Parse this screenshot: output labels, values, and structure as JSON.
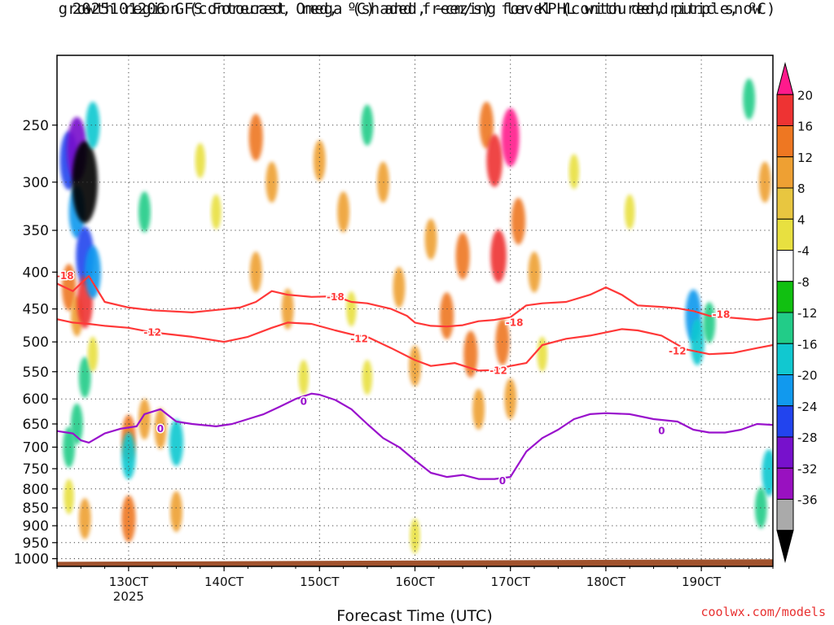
{
  "chart_data": {
    "type": "heatmap",
    "title_line1": "2025101206 GFS Forecast Omega (shaded, −cm/s) for KPHL with dendritic snow",
    "title_line2": "growth region (contoured, red, ºC) and freezing level (contoured, purple, ºC)",
    "xlabel": "Forecast Time (UTC)",
    "ylabel": "",
    "y_scale": "log-pressure",
    "ylim": [
      1025,
      200
    ],
    "y_ticks": [
      250,
      300,
      350,
      400,
      450,
      500,
      550,
      600,
      650,
      700,
      750,
      800,
      850,
      900,
      950,
      1000
    ],
    "x_ticks": [
      {
        "hour": 24,
        "label": "130CT",
        "sublabel": "2025"
      },
      {
        "hour": 48,
        "label": "140CT",
        "sublabel": ""
      },
      {
        "hour": 72,
        "label": "150CT",
        "sublabel": ""
      },
      {
        "hour": 96,
        "label": "160CT",
        "sublabel": ""
      },
      {
        "hour": 120,
        "label": "170CT",
        "sublabel": ""
      },
      {
        "hour": 144,
        "label": "180CT",
        "sublabel": ""
      },
      {
        "hour": 168,
        "label": "190CT",
        "sublabel": ""
      }
    ],
    "xlim": [
      6,
      186
    ],
    "colorbar": {
      "levels": [
        -36,
        -32,
        -28,
        -24,
        -20,
        -16,
        -12,
        -8,
        -4,
        4,
        8,
        12,
        16,
        20
      ],
      "labels": [
        "20",
        "16",
        "12",
        "8",
        "4",
        "-4",
        "-8",
        "-12",
        "-16",
        "-20",
        "-24",
        "-28",
        "-32",
        "-36"
      ],
      "colors_top_to_bottom": [
        "#ff1a8c",
        "#ee3333",
        "#ee7722",
        "#eea033",
        "#e8c640",
        "#e8e040",
        "#ffffff",
        "#11c011",
        "#22cc88",
        "#11c8d0",
        "#1199ee",
        "#2244ee",
        "#7711cc",
        "#9911c0",
        "#aaaaaa",
        "#000000"
      ]
    },
    "omega_cells": [
      {
        "t": 9,
        "p": 280,
        "v": -20
      },
      {
        "t": 9,
        "p": 420,
        "v": 12
      },
      {
        "t": 9,
        "p": 700,
        "v": -8
      },
      {
        "t": 9,
        "p": 820,
        "v": 4
      },
      {
        "t": 11,
        "p": 270,
        "v": -24
      },
      {
        "t": 11,
        "p": 330,
        "v": -16
      },
      {
        "t": 11,
        "p": 460,
        "v": 8
      },
      {
        "t": 11,
        "p": 650,
        "v": -8
      },
      {
        "t": 13,
        "p": 300,
        "v": -36
      },
      {
        "t": 13,
        "p": 380,
        "v": -20
      },
      {
        "t": 13,
        "p": 440,
        "v": 16
      },
      {
        "t": 13,
        "p": 560,
        "v": -8
      },
      {
        "t": 13,
        "p": 880,
        "v": 8
      },
      {
        "t": 15,
        "p": 250,
        "v": -12
      },
      {
        "t": 15,
        "p": 400,
        "v": -16
      },
      {
        "t": 15,
        "p": 520,
        "v": 4
      },
      {
        "t": 24,
        "p": 680,
        "v": 12
      },
      {
        "t": 24,
        "p": 720,
        "v": -12
      },
      {
        "t": 24,
        "p": 880,
        "v": 12
      },
      {
        "t": 28,
        "p": 640,
        "v": 8
      },
      {
        "t": 28,
        "p": 330,
        "v": -8
      },
      {
        "t": 32,
        "p": 660,
        "v": 8
      },
      {
        "t": 36,
        "p": 690,
        "v": -12
      },
      {
        "t": 36,
        "p": 860,
        "v": 8
      },
      {
        "t": 42,
        "p": 280,
        "v": 4
      },
      {
        "t": 46,
        "p": 330,
        "v": 4
      },
      {
        "t": 56,
        "p": 260,
        "v": 12
      },
      {
        "t": 56,
        "p": 400,
        "v": 8
      },
      {
        "t": 60,
        "p": 300,
        "v": 8
      },
      {
        "t": 64,
        "p": 450,
        "v": 8
      },
      {
        "t": 68,
        "p": 560,
        "v": 4
      },
      {
        "t": 72,
        "p": 280,
        "v": 8
      },
      {
        "t": 78,
        "p": 330,
        "v": 8
      },
      {
        "t": 80,
        "p": 450,
        "v": 4
      },
      {
        "t": 84,
        "p": 250,
        "v": -8
      },
      {
        "t": 84,
        "p": 560,
        "v": 4
      },
      {
        "t": 88,
        "p": 300,
        "v": 8
      },
      {
        "t": 92,
        "p": 420,
        "v": 8
      },
      {
        "t": 96,
        "p": 540,
        "v": 8
      },
      {
        "t": 96,
        "p": 930,
        "v": 4
      },
      {
        "t": 100,
        "p": 360,
        "v": 8
      },
      {
        "t": 104,
        "p": 460,
        "v": 12
      },
      {
        "t": 108,
        "p": 380,
        "v": 12
      },
      {
        "t": 110,
        "p": 520,
        "v": 12
      },
      {
        "t": 112,
        "p": 620,
        "v": 8
      },
      {
        "t": 114,
        "p": 250,
        "v": 12
      },
      {
        "t": 116,
        "p": 280,
        "v": 16
      },
      {
        "t": 117,
        "p": 380,
        "v": 16
      },
      {
        "t": 118,
        "p": 500,
        "v": 12
      },
      {
        "t": 120,
        "p": 260,
        "v": 20
      },
      {
        "t": 120,
        "p": 600,
        "v": 8
      },
      {
        "t": 122,
        "p": 340,
        "v": 12
      },
      {
        "t": 126,
        "p": 400,
        "v": 8
      },
      {
        "t": 128,
        "p": 520,
        "v": 4
      },
      {
        "t": 136,
        "p": 290,
        "v": 4
      },
      {
        "t": 150,
        "p": 330,
        "v": 4
      },
      {
        "t": 166,
        "p": 460,
        "v": -16
      },
      {
        "t": 167,
        "p": 500,
        "v": -12
      },
      {
        "t": 170,
        "p": 470,
        "v": -8
      },
      {
        "t": 180,
        "p": 230,
        "v": -8
      },
      {
        "t": 184,
        "p": 300,
        "v": 8
      },
      {
        "t": 185,
        "p": 760,
        "v": -12
      },
      {
        "t": 183,
        "p": 850,
        "v": -8
      }
    ],
    "contours": [
      {
        "name": "dgz-upper",
        "level": -18,
        "label": "-18",
        "color": "#ff3838",
        "t": [
          6,
          10,
          14,
          18,
          24,
          30,
          40,
          52,
          56,
          60,
          64,
          70,
          76,
          80,
          84,
          90,
          94,
          96,
          100,
          104,
          108,
          112,
          116,
          120,
          124,
          128,
          134,
          140,
          144,
          148,
          152,
          158,
          162,
          166,
          170,
          174,
          178,
          182,
          186
        ],
        "p": [
          415,
          425,
          405,
          440,
          448,
          452,
          455,
          448,
          440,
          425,
          430,
          433,
          432,
          440,
          442,
          450,
          460,
          470,
          475,
          476,
          474,
          468,
          466,
          462,
          445,
          442,
          440,
          430,
          420,
          430,
          445,
          447,
          449,
          453,
          460,
          462,
          464,
          466,
          463
        ]
      },
      {
        "name": "dgz-lower",
        "level": -12,
        "label": "-12",
        "color": "#ff3838",
        "t": [
          6,
          10,
          14,
          18,
          24,
          30,
          40,
          48,
          54,
          60,
          64,
          70,
          76,
          80,
          84,
          90,
          96,
          100,
          106,
          112,
          116,
          120,
          124,
          128,
          134,
          140,
          144,
          148,
          152,
          158,
          164,
          170,
          176,
          182,
          186
        ],
        "p": [
          465,
          470,
          472,
          475,
          478,
          485,
          492,
          500,
          492,
          478,
          470,
          472,
          482,
          488,
          492,
          510,
          530,
          540,
          535,
          548,
          547,
          540,
          535,
          505,
          495,
          490,
          485,
          480,
          482,
          490,
          512,
          520,
          518,
          510,
          505
        ]
      },
      {
        "name": "freezing-level",
        "level": 0,
        "label": "0",
        "color": "#9911cc",
        "t": [
          6,
          10,
          12,
          14,
          18,
          22,
          26,
          28,
          32,
          36,
          40,
          46,
          50,
          54,
          58,
          62,
          66,
          70,
          72,
          76,
          80,
          84,
          88,
          92,
          96,
          100,
          104,
          108,
          112,
          116,
          120,
          124,
          128,
          132,
          136,
          140,
          144,
          150,
          156,
          162,
          166,
          170,
          174,
          178,
          182,
          186
        ],
        "p": [
          665,
          670,
          685,
          690,
          670,
          660,
          655,
          630,
          620,
          645,
          650,
          655,
          650,
          640,
          630,
          615,
          600,
          590,
          592,
          602,
          620,
          650,
          680,
          700,
          730,
          760,
          770,
          765,
          775,
          775,
          770,
          710,
          680,
          662,
          640,
          630,
          628,
          630,
          640,
          645,
          662,
          668,
          668,
          662,
          650,
          652
        ]
      }
    ],
    "contour_labels": [
      {
        "text": "-18",
        "t": 8,
        "p": 405,
        "color": "#ff3838"
      },
      {
        "text": "-18",
        "t": 76,
        "p": 433,
        "color": "#ff3838"
      },
      {
        "text": "-18",
        "t": 121,
        "p": 470,
        "color": "#ff3838"
      },
      {
        "text": "-18",
        "t": 173,
        "p": 458,
        "color": "#ff3838"
      },
      {
        "text": "-12",
        "t": 30,
        "p": 485,
        "color": "#ff3838"
      },
      {
        "text": "-12",
        "t": 82,
        "p": 495,
        "color": "#ff3838"
      },
      {
        "text": "-12",
        "t": 117,
        "p": 548,
        "color": "#ff3838"
      },
      {
        "text": "-12",
        "t": 162,
        "p": 515,
        "color": "#ff3838"
      },
      {
        "text": "0",
        "t": 32,
        "p": 660,
        "color": "#9911cc"
      },
      {
        "text": "0",
        "t": 68,
        "p": 605,
        "color": "#9911cc"
      },
      {
        "text": "0",
        "t": 118,
        "p": 780,
        "color": "#9911cc"
      },
      {
        "text": "0",
        "t": 158,
        "p": 665,
        "color": "#9911cc"
      }
    ],
    "ground": {
      "p_top_start": 1010,
      "p_top_end": 1002,
      "color": "#a0522d"
    }
  },
  "credit": "coolwx.com/models",
  "credit_color": "#e83030"
}
